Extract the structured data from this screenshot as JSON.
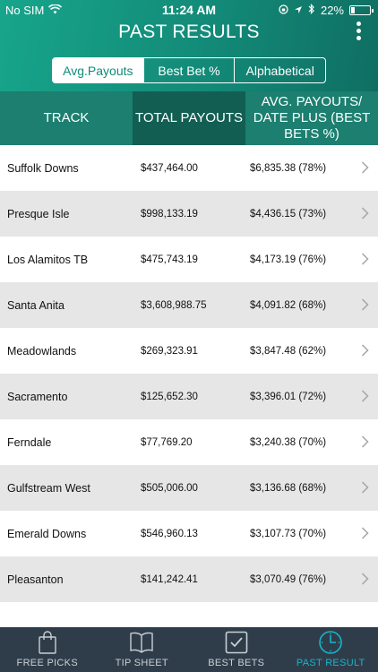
{
  "status_bar": {
    "carrier": "No SIM",
    "time": "11:24 AM",
    "battery_percent": "22%",
    "battery_level": 0.22
  },
  "header": {
    "title": "PAST RESULTS",
    "more_icon": "vertical-ellipsis-icon"
  },
  "sort_tabs": [
    {
      "label": "Avg.Payouts",
      "active": true
    },
    {
      "label": "Best Bet %",
      "active": false
    },
    {
      "label": "Alphabetical",
      "active": false
    }
  ],
  "table": {
    "columns": [
      "TRACK",
      "TOTAL PAYOUTS",
      "AVG. PAYOUTS/ DATE PLUS (BEST BETS %)"
    ],
    "rows": [
      {
        "track": "Suffolk Downs",
        "total": "$437,464.00",
        "avg": "$6,835.38 (78%)"
      },
      {
        "track": "Presque Isle",
        "total": "$998,133.19",
        "avg": "$4,436.15 (73%)"
      },
      {
        "track": "Los Alamitos TB",
        "total": "$475,743.19",
        "avg": "$4,173.19 (76%)"
      },
      {
        "track": "Santa Anita",
        "total": "$3,608,988.75",
        "avg": "$4,091.82 (68%)"
      },
      {
        "track": "Meadowlands",
        "total": "$269,323.91",
        "avg": "$3,847.48 (62%)"
      },
      {
        "track": "Sacramento",
        "total": "$125,652.30",
        "avg": "$3,396.01 (72%)"
      },
      {
        "track": "Ferndale",
        "total": "$77,769.20",
        "avg": "$3,240.38 (70%)"
      },
      {
        "track": "Gulfstream West",
        "total": "$505,006.00",
        "avg": "$3,136.68 (68%)"
      },
      {
        "track": "Emerald Downs",
        "total": "$546,960.13",
        "avg": "$3,107.73 (70%)"
      },
      {
        "track": "Pleasanton",
        "total": "$141,242.41",
        "avg": "$3,070.49 (76%)"
      },
      {
        "track": "",
        "total": "",
        "avg": ""
      }
    ]
  },
  "tab_bar": [
    {
      "label": "FREE PICKS",
      "icon": "shopping-bag-icon",
      "active": false
    },
    {
      "label": "TIP SHEET",
      "icon": "book-icon",
      "active": false
    },
    {
      "label": "BEST BETS",
      "icon": "checkbox-icon",
      "active": false
    },
    {
      "label": "PAST RESULT",
      "icon": "clock-icon",
      "active": true
    }
  ],
  "colors": {
    "header_accent": "#17a58c",
    "table_header": "#1c7f70",
    "tab_bar_bg": "#2f3d4a",
    "active_tab": "#19b3c9"
  }
}
